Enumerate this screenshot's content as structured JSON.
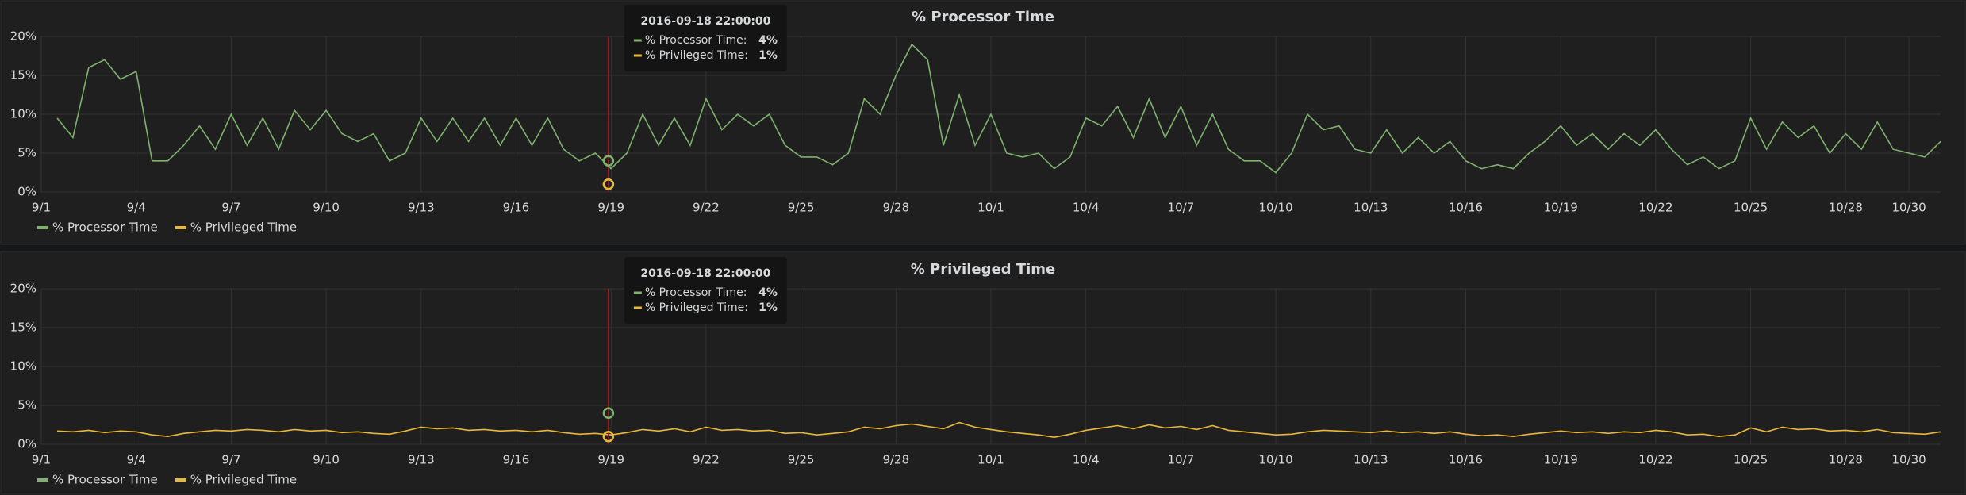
{
  "chart_data": [
    {
      "type": "line",
      "title": "% Processor Time",
      "x": [
        "2016-09-01 12:00",
        "2016-09-02 00:00",
        "2016-09-02 12:00",
        "2016-09-03 00:00",
        "2016-09-03 12:00",
        "2016-09-04 00:00",
        "2016-09-04 12:00",
        "2016-09-05 00:00",
        "2016-09-05 12:00",
        "2016-09-06 00:00",
        "2016-09-06 12:00",
        "2016-09-07 00:00",
        "2016-09-07 12:00",
        "2016-09-08 00:00",
        "2016-09-08 12:00",
        "2016-09-09 00:00",
        "2016-09-09 12:00",
        "2016-09-10 00:00",
        "2016-09-10 12:00",
        "2016-09-11 00:00",
        "2016-09-11 12:00",
        "2016-09-12 00:00",
        "2016-09-12 12:00",
        "2016-09-13 00:00",
        "2016-09-13 12:00",
        "2016-09-14 00:00",
        "2016-09-14 12:00",
        "2016-09-15 00:00",
        "2016-09-15 12:00",
        "2016-09-16 00:00",
        "2016-09-16 12:00",
        "2016-09-17 00:00",
        "2016-09-17 12:00",
        "2016-09-18 00:00",
        "2016-09-18 12:00",
        "2016-09-19 00:00",
        "2016-09-19 12:00",
        "2016-09-20 00:00",
        "2016-09-20 12:00",
        "2016-09-21 00:00",
        "2016-09-21 12:00",
        "2016-09-22 00:00",
        "2016-09-22 12:00",
        "2016-09-23 00:00",
        "2016-09-23 12:00",
        "2016-09-24 00:00",
        "2016-09-24 12:00",
        "2016-09-25 00:00",
        "2016-09-25 12:00",
        "2016-09-26 00:00",
        "2016-09-26 12:00",
        "2016-09-27 00:00",
        "2016-09-27 12:00",
        "2016-09-28 00:00",
        "2016-09-28 12:00",
        "2016-09-29 00:00",
        "2016-09-29 12:00",
        "2016-09-30 00:00",
        "2016-09-30 12:00",
        "2016-10-01 00:00",
        "2016-10-01 12:00",
        "2016-10-02 00:00",
        "2016-10-02 12:00",
        "2016-10-03 00:00",
        "2016-10-03 12:00",
        "2016-10-04 00:00",
        "2016-10-04 12:00",
        "2016-10-05 00:00",
        "2016-10-05 12:00",
        "2016-10-06 00:00",
        "2016-10-06 12:00",
        "2016-10-07 00:00",
        "2016-10-07 12:00",
        "2016-10-08 00:00",
        "2016-10-08 12:00",
        "2016-10-09 00:00",
        "2016-10-09 12:00",
        "2016-10-10 00:00",
        "2016-10-10 12:00",
        "2016-10-11 00:00",
        "2016-10-11 12:00",
        "2016-10-12 00:00",
        "2016-10-12 12:00",
        "2016-10-13 00:00",
        "2016-10-13 12:00",
        "2016-10-14 00:00",
        "2016-10-14 12:00",
        "2016-10-15 00:00",
        "2016-10-15 12:00",
        "2016-10-16 00:00",
        "2016-10-16 12:00",
        "2016-10-17 00:00",
        "2016-10-17 12:00",
        "2016-10-18 00:00",
        "2016-10-18 12:00",
        "2016-10-19 00:00",
        "2016-10-19 12:00",
        "2016-10-20 00:00",
        "2016-10-20 12:00",
        "2016-10-21 00:00",
        "2016-10-21 12:00",
        "2016-10-22 00:00",
        "2016-10-22 12:00",
        "2016-10-23 00:00",
        "2016-10-23 12:00",
        "2016-10-24 00:00",
        "2016-10-24 12:00",
        "2016-10-25 00:00",
        "2016-10-25 12:00",
        "2016-10-26 00:00",
        "2016-10-26 12:00",
        "2016-10-27 00:00",
        "2016-10-27 12:00",
        "2016-10-28 00:00",
        "2016-10-28 12:00",
        "2016-10-29 00:00",
        "2016-10-29 12:00",
        "2016-10-30 00:00",
        "2016-10-30 12:00",
        "2016-10-31 00:00"
      ],
      "series": [
        {
          "name": "% Processor Time",
          "color": "#7eb26d",
          "values": [
            9.5,
            7,
            16,
            17,
            14.5,
            15.5,
            4,
            4,
            6,
            8.5,
            5.5,
            10,
            6,
            9.5,
            5.5,
            10.5,
            8,
            10.5,
            7.5,
            6.5,
            7.5,
            4,
            5,
            9.5,
            6.5,
            9.5,
            6.5,
            9.5,
            6,
            9.5,
            6,
            9.5,
            5.5,
            4,
            5,
            3,
            5,
            10,
            6,
            9.5,
            6,
            12,
            8,
            10,
            8.5,
            10,
            6,
            4.5,
            4.5,
            3.5,
            5,
            12,
            10,
            15,
            19,
            17,
            6,
            12.5,
            6,
            10,
            5,
            4.5,
            5,
            3,
            4.5,
            9.5,
            8.5,
            11,
            7,
            12,
            7,
            11,
            6,
            10,
            5.5,
            4,
            4,
            2.5,
            5,
            10,
            8,
            8.5,
            5.5,
            5,
            8,
            5,
            7,
            5,
            6.5,
            4,
            3,
            3.5,
            3,
            5,
            6.5,
            8.5,
            6,
            7.5,
            5.5,
            7.5,
            6,
            8,
            5.5,
            3.5,
            4.5,
            3,
            4,
            9.5,
            5.5,
            9,
            7,
            8.5,
            5,
            7.5,
            5.5,
            9,
            5.5,
            5,
            4.5,
            6.5
          ]
        },
        {
          "name": "% Privileged Time",
          "color": "#eab839",
          "hidden": true
        }
      ],
      "xlim": [
        "2016-09-01 00:00",
        "2016-10-31 00:00"
      ],
      "xticks": [
        {
          "value": "2016-09-01 00:00",
          "label": "9/1"
        },
        {
          "value": "2016-09-04 00:00",
          "label": "9/4"
        },
        {
          "value": "2016-09-07 00:00",
          "label": "9/7"
        },
        {
          "value": "2016-09-10 00:00",
          "label": "9/10"
        },
        {
          "value": "2016-09-13 00:00",
          "label": "9/13"
        },
        {
          "value": "2016-09-16 00:00",
          "label": "9/16"
        },
        {
          "value": "2016-09-19 00:00",
          "label": "9/19"
        },
        {
          "value": "2016-09-22 00:00",
          "label": "9/22"
        },
        {
          "value": "2016-09-25 00:00",
          "label": "9/25"
        },
        {
          "value": "2016-09-28 00:00",
          "label": "9/28"
        },
        {
          "value": "2016-10-01 00:00",
          "label": "10/1"
        },
        {
          "value": "2016-10-04 00:00",
          "label": "10/4"
        },
        {
          "value": "2016-10-07 00:00",
          "label": "10/7"
        },
        {
          "value": "2016-10-10 00:00",
          "label": "10/10"
        },
        {
          "value": "2016-10-13 00:00",
          "label": "10/13"
        },
        {
          "value": "2016-10-16 00:00",
          "label": "10/16"
        },
        {
          "value": "2016-10-19 00:00",
          "label": "10/19"
        },
        {
          "value": "2016-10-22 00:00",
          "label": "10/22"
        },
        {
          "value": "2016-10-25 00:00",
          "label": "10/25"
        },
        {
          "value": "2016-10-28 00:00",
          "label": "10/28"
        },
        {
          "value": "2016-10-30 00:00",
          "label": "10/30"
        }
      ],
      "ylim": [
        0,
        20
      ],
      "yticks": [
        {
          "value": 0,
          "label": "0%"
        },
        {
          "value": 5,
          "label": "5%"
        },
        {
          "value": 10,
          "label": "10%"
        },
        {
          "value": 15,
          "label": "15%"
        },
        {
          "value": 20,
          "label": "20%"
        }
      ],
      "grid": true,
      "tooltip": {
        "time": "2016-09-18 22:00:00",
        "items": [
          {
            "name": "% Processor Time:",
            "value": 4,
            "value_label": "4%"
          },
          {
            "name": "% Privileged Time:",
            "value": 1,
            "value_label": "1%"
          }
        ]
      }
    },
    {
      "type": "line",
      "title": "% Privileged Time",
      "x": [
        "2016-09-01 12:00",
        "2016-09-02 00:00",
        "2016-09-02 12:00",
        "2016-09-03 00:00",
        "2016-09-03 12:00",
        "2016-09-04 00:00",
        "2016-09-04 12:00",
        "2016-09-05 00:00",
        "2016-09-05 12:00",
        "2016-09-06 00:00",
        "2016-09-06 12:00",
        "2016-09-07 00:00",
        "2016-09-07 12:00",
        "2016-09-08 00:00",
        "2016-09-08 12:00",
        "2016-09-09 00:00",
        "2016-09-09 12:00",
        "2016-09-10 00:00",
        "2016-09-10 12:00",
        "2016-09-11 00:00",
        "2016-09-11 12:00",
        "2016-09-12 00:00",
        "2016-09-12 12:00",
        "2016-09-13 00:00",
        "2016-09-13 12:00",
        "2016-09-14 00:00",
        "2016-09-14 12:00",
        "2016-09-15 00:00",
        "2016-09-15 12:00",
        "2016-09-16 00:00",
        "2016-09-16 12:00",
        "2016-09-17 00:00",
        "2016-09-17 12:00",
        "2016-09-18 00:00",
        "2016-09-18 12:00",
        "2016-09-19 00:00",
        "2016-09-19 12:00",
        "2016-09-20 00:00",
        "2016-09-20 12:00",
        "2016-09-21 00:00",
        "2016-09-21 12:00",
        "2016-09-22 00:00",
        "2016-09-22 12:00",
        "2016-09-23 00:00",
        "2016-09-23 12:00",
        "2016-09-24 00:00",
        "2016-09-24 12:00",
        "2016-09-25 00:00",
        "2016-09-25 12:00",
        "2016-09-26 00:00",
        "2016-09-26 12:00",
        "2016-09-27 00:00",
        "2016-09-27 12:00",
        "2016-09-28 00:00",
        "2016-09-28 12:00",
        "2016-09-29 00:00",
        "2016-09-29 12:00",
        "2016-09-30 00:00",
        "2016-09-30 12:00",
        "2016-10-01 00:00",
        "2016-10-01 12:00",
        "2016-10-02 00:00",
        "2016-10-02 12:00",
        "2016-10-03 00:00",
        "2016-10-03 12:00",
        "2016-10-04 00:00",
        "2016-10-04 12:00",
        "2016-10-05 00:00",
        "2016-10-05 12:00",
        "2016-10-06 00:00",
        "2016-10-06 12:00",
        "2016-10-07 00:00",
        "2016-10-07 12:00",
        "2016-10-08 00:00",
        "2016-10-08 12:00",
        "2016-10-09 00:00",
        "2016-10-09 12:00",
        "2016-10-10 00:00",
        "2016-10-10 12:00",
        "2016-10-11 00:00",
        "2016-10-11 12:00",
        "2016-10-12 00:00",
        "2016-10-12 12:00",
        "2016-10-13 00:00",
        "2016-10-13 12:00",
        "2016-10-14 00:00",
        "2016-10-14 12:00",
        "2016-10-15 00:00",
        "2016-10-15 12:00",
        "2016-10-16 00:00",
        "2016-10-16 12:00",
        "2016-10-17 00:00",
        "2016-10-17 12:00",
        "2016-10-18 00:00",
        "2016-10-18 12:00",
        "2016-10-19 00:00",
        "2016-10-19 12:00",
        "2016-10-20 00:00",
        "2016-10-20 12:00",
        "2016-10-21 00:00",
        "2016-10-21 12:00",
        "2016-10-22 00:00",
        "2016-10-22 12:00",
        "2016-10-23 00:00",
        "2016-10-23 12:00",
        "2016-10-24 00:00",
        "2016-10-24 12:00",
        "2016-10-25 00:00",
        "2016-10-25 12:00",
        "2016-10-26 00:00",
        "2016-10-26 12:00",
        "2016-10-27 00:00",
        "2016-10-27 12:00",
        "2016-10-28 00:00",
        "2016-10-28 12:00",
        "2016-10-29 00:00",
        "2016-10-29 12:00",
        "2016-10-30 00:00",
        "2016-10-30 12:00",
        "2016-10-31 00:00"
      ],
      "series": [
        {
          "name": "% Processor Time",
          "color": "#7eb26d",
          "hidden": true
        },
        {
          "name": "% Privileged Time",
          "color": "#eab839",
          "values": [
            1.7,
            1.6,
            1.8,
            1.5,
            1.7,
            1.6,
            1.2,
            1.0,
            1.4,
            1.6,
            1.8,
            1.7,
            1.9,
            1.8,
            1.6,
            1.9,
            1.7,
            1.8,
            1.5,
            1.6,
            1.4,
            1.3,
            1.7,
            2.2,
            2.0,
            2.1,
            1.8,
            1.9,
            1.7,
            1.8,
            1.6,
            1.8,
            1.5,
            1.3,
            1.4,
            1.2,
            1.5,
            1.9,
            1.7,
            2.0,
            1.6,
            2.2,
            1.8,
            1.9,
            1.7,
            1.8,
            1.4,
            1.5,
            1.2,
            1.4,
            1.6,
            2.2,
            2.0,
            2.4,
            2.6,
            2.3,
            2.0,
            2.8,
            2.2,
            1.9,
            1.6,
            1.4,
            1.2,
            0.9,
            1.3,
            1.8,
            2.1,
            2.4,
            2.0,
            2.5,
            2.1,
            2.3,
            1.9,
            2.4,
            1.8,
            1.6,
            1.4,
            1.2,
            1.3,
            1.6,
            1.8,
            1.7,
            1.6,
            1.5,
            1.7,
            1.5,
            1.6,
            1.4,
            1.6,
            1.3,
            1.1,
            1.2,
            1.0,
            1.3,
            1.5,
            1.7,
            1.5,
            1.6,
            1.4,
            1.6,
            1.5,
            1.8,
            1.6,
            1.2,
            1.3,
            1.0,
            1.2,
            2.1,
            1.6,
            2.2,
            1.9,
            2.0,
            1.7,
            1.8,
            1.6,
            1.9,
            1.5,
            1.4,
            1.3,
            1.6
          ]
        }
      ],
      "xlim": [
        "2016-09-01 00:00",
        "2016-10-31 00:00"
      ],
      "xticks": [
        {
          "value": "2016-09-01 00:00",
          "label": "9/1"
        },
        {
          "value": "2016-09-04 00:00",
          "label": "9/4"
        },
        {
          "value": "2016-09-07 00:00",
          "label": "9/7"
        },
        {
          "value": "2016-09-10 00:00",
          "label": "9/10"
        },
        {
          "value": "2016-09-13 00:00",
          "label": "9/13"
        },
        {
          "value": "2016-09-16 00:00",
          "label": "9/16"
        },
        {
          "value": "2016-09-19 00:00",
          "label": "9/19"
        },
        {
          "value": "2016-09-22 00:00",
          "label": "9/22"
        },
        {
          "value": "2016-09-25 00:00",
          "label": "9/25"
        },
        {
          "value": "2016-09-28 00:00",
          "label": "9/28"
        },
        {
          "value": "2016-10-01 00:00",
          "label": "10/1"
        },
        {
          "value": "2016-10-04 00:00",
          "label": "10/4"
        },
        {
          "value": "2016-10-07 00:00",
          "label": "10/7"
        },
        {
          "value": "2016-10-10 00:00",
          "label": "10/10"
        },
        {
          "value": "2016-10-13 00:00",
          "label": "10/13"
        },
        {
          "value": "2016-10-16 00:00",
          "label": "10/16"
        },
        {
          "value": "2016-10-19 00:00",
          "label": "10/19"
        },
        {
          "value": "2016-10-22 00:00",
          "label": "10/22"
        },
        {
          "value": "2016-10-25 00:00",
          "label": "10/25"
        },
        {
          "value": "2016-10-28 00:00",
          "label": "10/28"
        },
        {
          "value": "2016-10-30 00:00",
          "label": "10/30"
        }
      ],
      "ylim": [
        0,
        20
      ],
      "yticks": [
        {
          "value": 0,
          "label": "0%"
        },
        {
          "value": 5,
          "label": "5%"
        },
        {
          "value": 10,
          "label": "10%"
        },
        {
          "value": 15,
          "label": "15%"
        },
        {
          "value": 20,
          "label": "20%"
        }
      ],
      "grid": true,
      "tooltip": {
        "time": "2016-09-18 22:00:00",
        "items": [
          {
            "name": "% Processor Time:",
            "value": 4,
            "value_label": "4%"
          },
          {
            "name": "% Privileged Time:",
            "value": 1,
            "value_label": "1%"
          }
        ]
      }
    }
  ]
}
